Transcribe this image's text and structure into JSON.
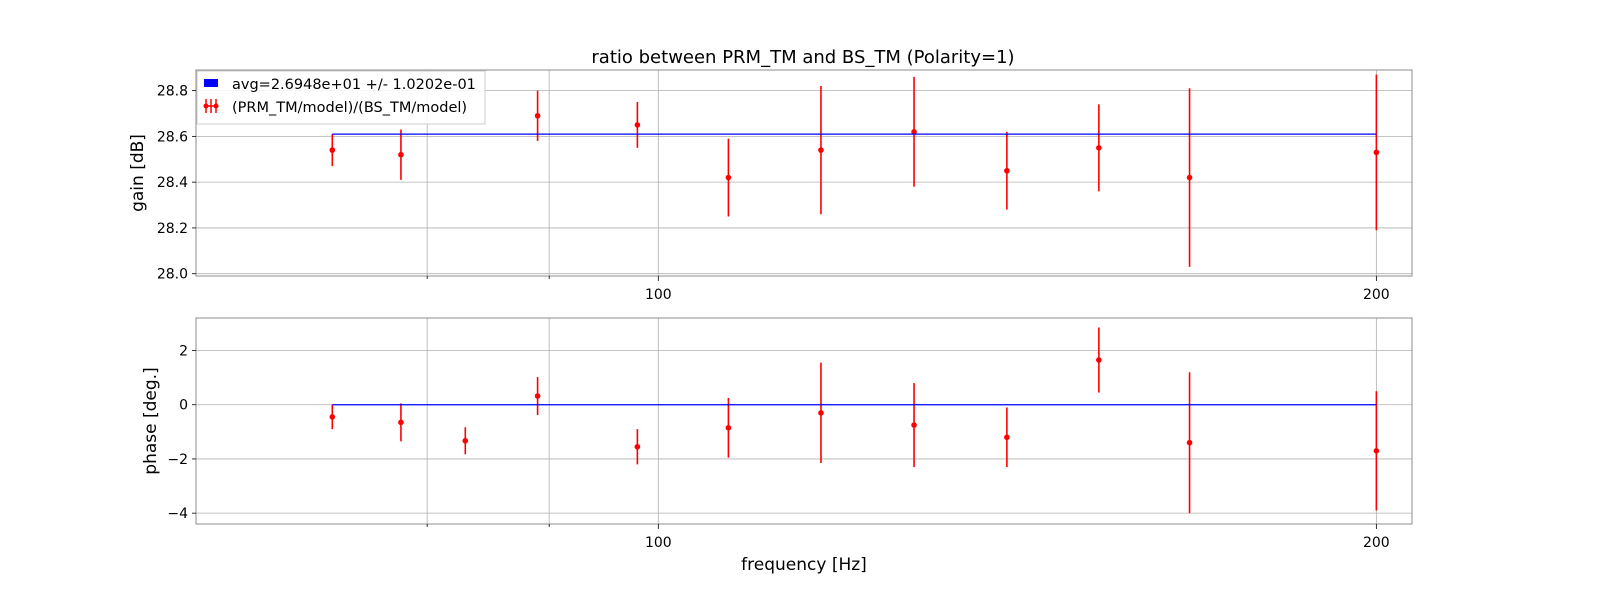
{
  "chart_data": [
    {
      "type": "scatter",
      "panel": "gain",
      "title": "ratio between PRM_TM and BS_TM (Polarity=1)",
      "xlabel": "",
      "ylabel": "gain [dB]",
      "xscale": "log",
      "xlim": [
        64.0,
        207.0
      ],
      "ylim": [
        27.99,
        28.89
      ],
      "yticks": [
        28.0,
        28.2,
        28.4,
        28.6,
        28.8
      ],
      "ytick_labels": [
        "28.0",
        "28.2",
        "28.4",
        "28.6",
        "28.8"
      ],
      "xticks_labeled": [
        100,
        200
      ],
      "xtick_labels": [
        "100",
        "200"
      ],
      "xticks_minor": [
        80,
        90
      ],
      "grid": true,
      "legend": {
        "placement": "top-left",
        "entries": [
          {
            "label": "avg=2.6948e+01 +/- 1.0202e-01",
            "color": "#0000ff",
            "marker": "patch"
          },
          {
            "label": "(PRM_TM/model)/(BS_TM/model)",
            "color": "#ff0000",
            "marker": "errorbar"
          }
        ]
      },
      "series": [
        {
          "name": "(PRM_TM/model)/(BS_TM/model)",
          "color": "#ff0000",
          "x": [
            73,
            78,
            89,
            98,
            107,
            117,
            128,
            140,
            153,
            167,
            200
          ],
          "y": [
            28.54,
            28.52,
            28.69,
            28.65,
            28.42,
            28.54,
            28.62,
            28.45,
            28.55,
            28.42,
            28.53
          ],
          "yerr": [
            0.07,
            0.11,
            0.11,
            0.1,
            0.17,
            0.28,
            0.24,
            0.17,
            0.19,
            0.39,
            0.34
          ]
        },
        {
          "name": "avg=2.6948e+01 +/- 1.0202e-01",
          "color": "#0000ff",
          "type": "line",
          "x": [
            73,
            200
          ],
          "y": [
            28.61,
            28.61
          ]
        }
      ]
    },
    {
      "type": "scatter",
      "panel": "phase",
      "title": "",
      "xlabel": "frequency [Hz]",
      "ylabel": "phase [deg.]",
      "xscale": "log",
      "xlim": [
        64.0,
        207.0
      ],
      "ylim": [
        -4.4,
        3.2
      ],
      "yticks": [
        -4,
        -2,
        0,
        2
      ],
      "ytick_labels": [
        "−4",
        "−2",
        "0",
        "2"
      ],
      "xticks_labeled": [
        100,
        200
      ],
      "xtick_labels": [
        "100",
        "200"
      ],
      "xticks_minor": [
        80,
        90
      ],
      "grid": true,
      "series": [
        {
          "name": "(PRM_TM/model)/(BS_TM/model)",
          "color": "#ff0000",
          "x": [
            73,
            78,
            83,
            89,
            98,
            107,
            117,
            128,
            140,
            153,
            167,
            200
          ],
          "y": [
            -0.45,
            -0.65,
            -1.33,
            0.32,
            -1.55,
            -0.85,
            -0.3,
            -0.75,
            -1.2,
            1.65,
            -1.4,
            -1.7
          ],
          "yerr": [
            0.45,
            0.7,
            0.5,
            0.7,
            0.65,
            1.1,
            1.85,
            1.55,
            1.1,
            1.2,
            2.6,
            2.2
          ]
        },
        {
          "name": "avg",
          "color": "#0000ff",
          "type": "line",
          "x": [
            73,
            200
          ],
          "y": [
            0,
            0
          ]
        }
      ]
    }
  ]
}
